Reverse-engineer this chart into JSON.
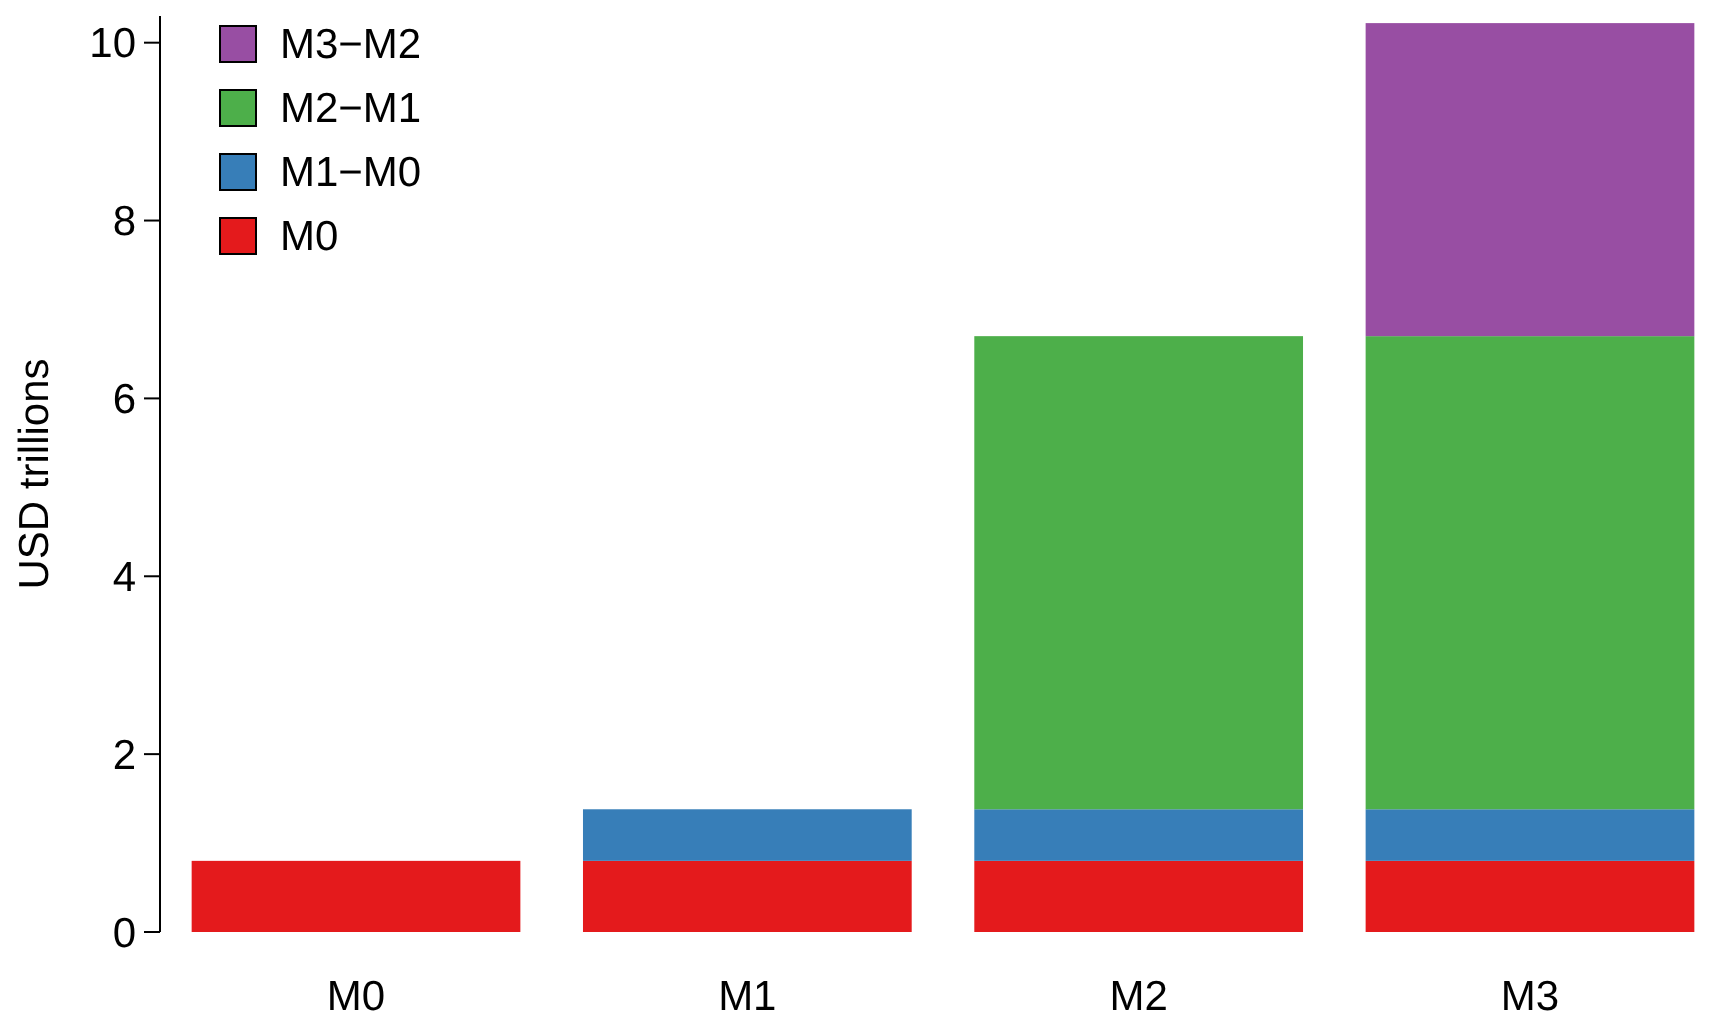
{
  "chart_data": {
    "type": "bar",
    "stacked": true,
    "ylabel": "USD trillions",
    "categories": [
      "M0",
      "M1",
      "M2",
      "M3"
    ],
    "series": [
      {
        "name": "M0",
        "color": "#e41a1c",
        "values": [
          0.8,
          0.8,
          0.8,
          0.8
        ]
      },
      {
        "name": "M1−M0",
        "color": "#377eb8",
        "values": [
          null,
          0.58,
          0.58,
          0.58
        ]
      },
      {
        "name": "M2−M1",
        "color": "#4daf4a",
        "values": [
          null,
          null,
          5.32,
          5.32
        ]
      },
      {
        "name": "M3−M2",
        "color": "#984ea3",
        "values": [
          null,
          null,
          null,
          3.52
        ]
      }
    ],
    "ylim": [
      0,
      10.3
    ],
    "yticks": [
      0,
      2,
      4,
      6,
      8,
      10
    ],
    "legend": "top left",
    "grid": false
  }
}
